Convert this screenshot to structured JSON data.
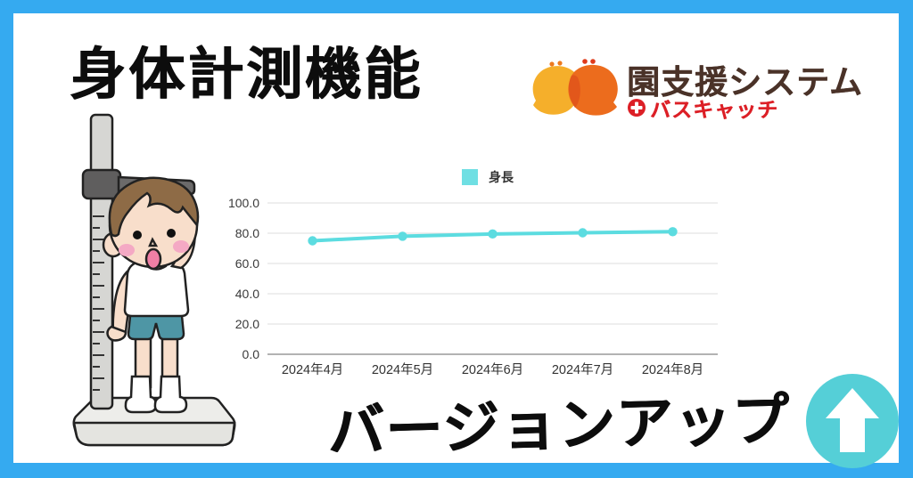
{
  "frame": {
    "border_color": "#35AAF0",
    "panel_color": "#ffffff"
  },
  "header": {
    "title": "身体計測機能"
  },
  "logo": {
    "brand": "園支援システム",
    "sub_brand": "バスキャッチ",
    "brand_color": "#4A3228",
    "sub_color": "#DC1F26",
    "bird_left_color": "#F5AF2B",
    "bird_right_color": "#EC6C1D"
  },
  "chart_data": {
    "type": "line",
    "title": "",
    "categories": [
      "2024年4月",
      "2024年5月",
      "2024年6月",
      "2024年7月",
      "2024年8月"
    ],
    "series": [
      {
        "name": "身長",
        "values": [
          75.0,
          78.0,
          79.5,
          80.3,
          81.0
        ]
      }
    ],
    "ylim": [
      0,
      100
    ],
    "yticks": [
      0,
      20,
      40,
      60,
      80,
      100
    ],
    "ytick_labels": [
      "0.0",
      "20.0",
      "40.0",
      "60.0",
      "80.0",
      "100.0"
    ],
    "grid": true,
    "legend_position": "top",
    "line_color": "#5CDCE0",
    "legend_swatch_color": "#6FDFE3",
    "gridline_color": "#E4E4E4",
    "axis_line_color": "#9A9A9A",
    "tick_label_color": "#3A3A3A"
  },
  "footer": {
    "headline": "バージョンアップ",
    "up_arrow_color": "#55CFD7"
  },
  "illustration": {
    "name": "boy-height-measurement"
  }
}
